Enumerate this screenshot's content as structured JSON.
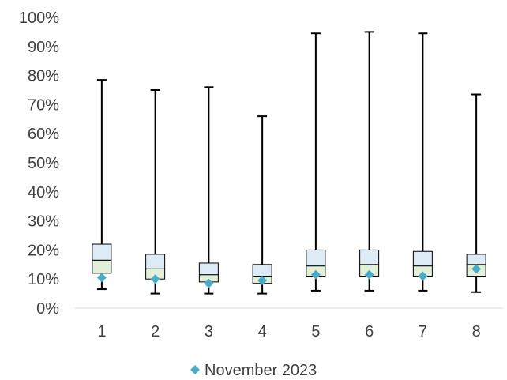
{
  "chart_data": {
    "type": "box",
    "categories": [
      "1",
      "2",
      "3",
      "4",
      "5",
      "6",
      "7",
      "8"
    ],
    "y_tick_labels": [
      "0%",
      "10%",
      "20%",
      "30%",
      "40%",
      "50%",
      "60%",
      "70%",
      "80%",
      "90%",
      "100%"
    ],
    "ylim": [
      0,
      100
    ],
    "grid": false,
    "legend_position": "bottom",
    "box_colors": {
      "lower_box": "#e2efd9",
      "upper_box": "#ddebf7",
      "outline": "#000000",
      "marker": "#4bacc6"
    },
    "series": [
      {
        "type": "box",
        "whisker_low": [
          6.5,
          5.0,
          5.0,
          5.0,
          6.0,
          6.0,
          6.0,
          5.5
        ],
        "q1": [
          12.0,
          10.0,
          9.0,
          8.5,
          11.0,
          11.0,
          11.0,
          11.0
        ],
        "median": [
          16.5,
          13.5,
          11.5,
          11.0,
          14.5,
          15.0,
          14.5,
          15.0
        ],
        "q3": [
          22.0,
          18.5,
          15.5,
          15.0,
          20.0,
          20.0,
          19.5,
          18.5
        ],
        "whisker_high": [
          78.5,
          75.0,
          76.0,
          66.0,
          94.5,
          95.0,
          94.5,
          73.5
        ]
      },
      {
        "type": "scatter",
        "name": "November 2023",
        "marker": "diamond",
        "values": [
          10.5,
          10.0,
          8.5,
          9.5,
          11.5,
          11.5,
          11.0,
          13.5
        ]
      }
    ]
  }
}
